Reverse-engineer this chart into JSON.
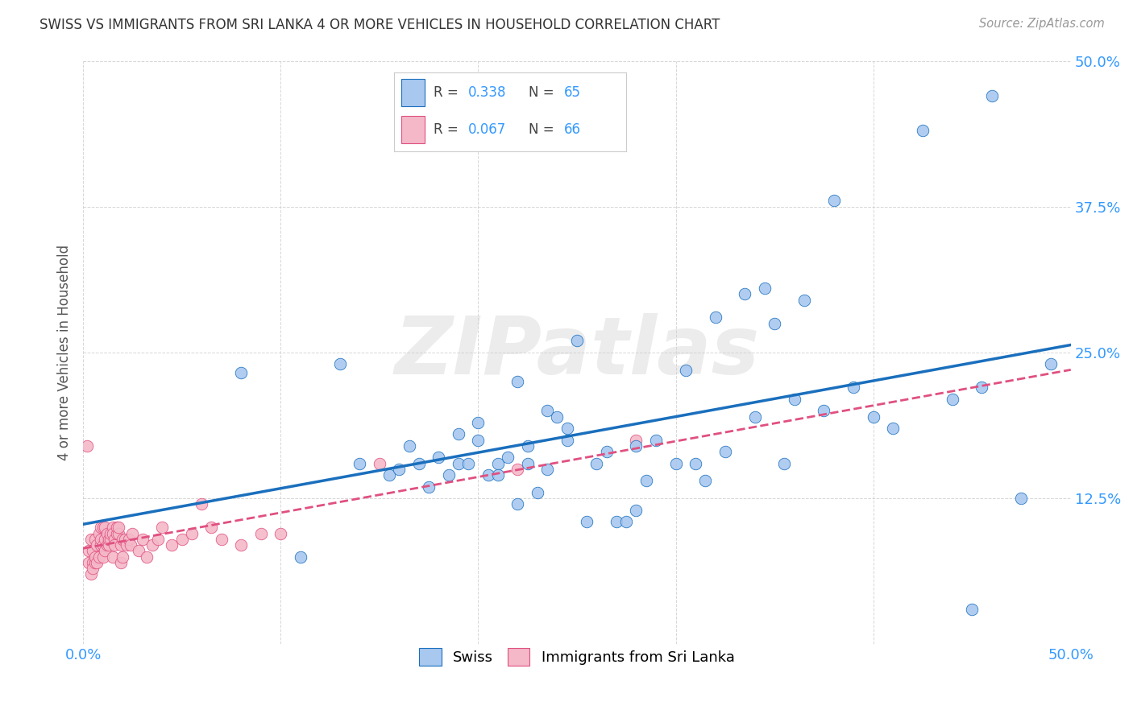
{
  "title": "SWISS VS IMMIGRANTS FROM SRI LANKA 4 OR MORE VEHICLES IN HOUSEHOLD CORRELATION CHART",
  "source": "Source: ZipAtlas.com",
  "ylabel": "4 or more Vehicles in Household",
  "x_min": 0.0,
  "x_max": 0.5,
  "y_min": 0.0,
  "y_max": 0.5,
  "x_ticks": [
    0.0,
    0.1,
    0.2,
    0.3,
    0.4,
    0.5
  ],
  "x_tick_labels_show": [
    "0.0%",
    "",
    "",
    "",
    "",
    "50.0%"
  ],
  "y_ticks": [
    0.0,
    0.125,
    0.25,
    0.375,
    0.5
  ],
  "y_tick_labels": [
    "",
    "12.5%",
    "25.0%",
    "37.5%",
    "50.0%"
  ],
  "swiss_R": 0.338,
  "swiss_N": 65,
  "srilanka_R": 0.067,
  "srilanka_N": 66,
  "swiss_color": "#a8c8f0",
  "srilanka_color": "#f4b8c8",
  "swiss_line_color": "#1a6fbd",
  "srilanka_line_color": "#e05080",
  "legend_swiss_label": "Swiss",
  "legend_srilanka_label": "Immigrants from Sri Lanka",
  "watermark": "ZIPatlas",
  "swiss_x": [
    0.08,
    0.11,
    0.13,
    0.14,
    0.155,
    0.16,
    0.165,
    0.17,
    0.175,
    0.18,
    0.185,
    0.19,
    0.19,
    0.195,
    0.2,
    0.2,
    0.205,
    0.21,
    0.21,
    0.215,
    0.22,
    0.22,
    0.225,
    0.225,
    0.23,
    0.235,
    0.235,
    0.24,
    0.245,
    0.245,
    0.25,
    0.255,
    0.26,
    0.265,
    0.27,
    0.275,
    0.28,
    0.28,
    0.285,
    0.29,
    0.3,
    0.305,
    0.31,
    0.315,
    0.32,
    0.325,
    0.335,
    0.34,
    0.345,
    0.35,
    0.355,
    0.36,
    0.365,
    0.375,
    0.38,
    0.39,
    0.4,
    0.41,
    0.425,
    0.44,
    0.45,
    0.455,
    0.46,
    0.475,
    0.49
  ],
  "swiss_y": [
    0.233,
    0.075,
    0.24,
    0.155,
    0.145,
    0.15,
    0.17,
    0.155,
    0.135,
    0.16,
    0.145,
    0.155,
    0.18,
    0.155,
    0.175,
    0.19,
    0.145,
    0.155,
    0.145,
    0.16,
    0.225,
    0.12,
    0.17,
    0.155,
    0.13,
    0.2,
    0.15,
    0.195,
    0.175,
    0.185,
    0.26,
    0.105,
    0.155,
    0.165,
    0.105,
    0.105,
    0.115,
    0.17,
    0.14,
    0.175,
    0.155,
    0.235,
    0.155,
    0.14,
    0.28,
    0.165,
    0.3,
    0.195,
    0.305,
    0.275,
    0.155,
    0.21,
    0.295,
    0.2,
    0.38,
    0.22,
    0.195,
    0.185,
    0.44,
    0.21,
    0.03,
    0.22,
    0.47,
    0.125,
    0.24
  ],
  "srilanka_x": [
    0.002,
    0.003,
    0.003,
    0.004,
    0.004,
    0.005,
    0.005,
    0.005,
    0.006,
    0.006,
    0.006,
    0.007,
    0.007,
    0.008,
    0.008,
    0.009,
    0.009,
    0.009,
    0.01,
    0.01,
    0.01,
    0.011,
    0.011,
    0.011,
    0.012,
    0.012,
    0.013,
    0.013,
    0.014,
    0.014,
    0.015,
    0.015,
    0.015,
    0.016,
    0.016,
    0.017,
    0.017,
    0.018,
    0.018,
    0.019,
    0.019,
    0.02,
    0.02,
    0.021,
    0.022,
    0.023,
    0.024,
    0.025,
    0.028,
    0.03,
    0.032,
    0.035,
    0.038,
    0.04,
    0.045,
    0.05,
    0.055,
    0.06,
    0.065,
    0.07,
    0.08,
    0.09,
    0.1,
    0.15,
    0.22,
    0.28
  ],
  "srilanka_y": [
    0.17,
    0.08,
    0.07,
    0.09,
    0.06,
    0.07,
    0.065,
    0.08,
    0.07,
    0.075,
    0.09,
    0.085,
    0.07,
    0.075,
    0.095,
    0.1,
    0.085,
    0.09,
    0.1,
    0.085,
    0.075,
    0.1,
    0.08,
    0.09,
    0.095,
    0.085,
    0.085,
    0.09,
    0.09,
    0.095,
    0.1,
    0.075,
    0.095,
    0.09,
    0.085,
    0.095,
    0.1,
    0.095,
    0.1,
    0.085,
    0.07,
    0.09,
    0.075,
    0.09,
    0.085,
    0.09,
    0.085,
    0.095,
    0.08,
    0.09,
    0.075,
    0.085,
    0.09,
    0.1,
    0.085,
    0.09,
    0.095,
    0.12,
    0.1,
    0.09,
    0.085,
    0.095,
    0.095,
    0.155,
    0.15,
    0.175
  ]
}
